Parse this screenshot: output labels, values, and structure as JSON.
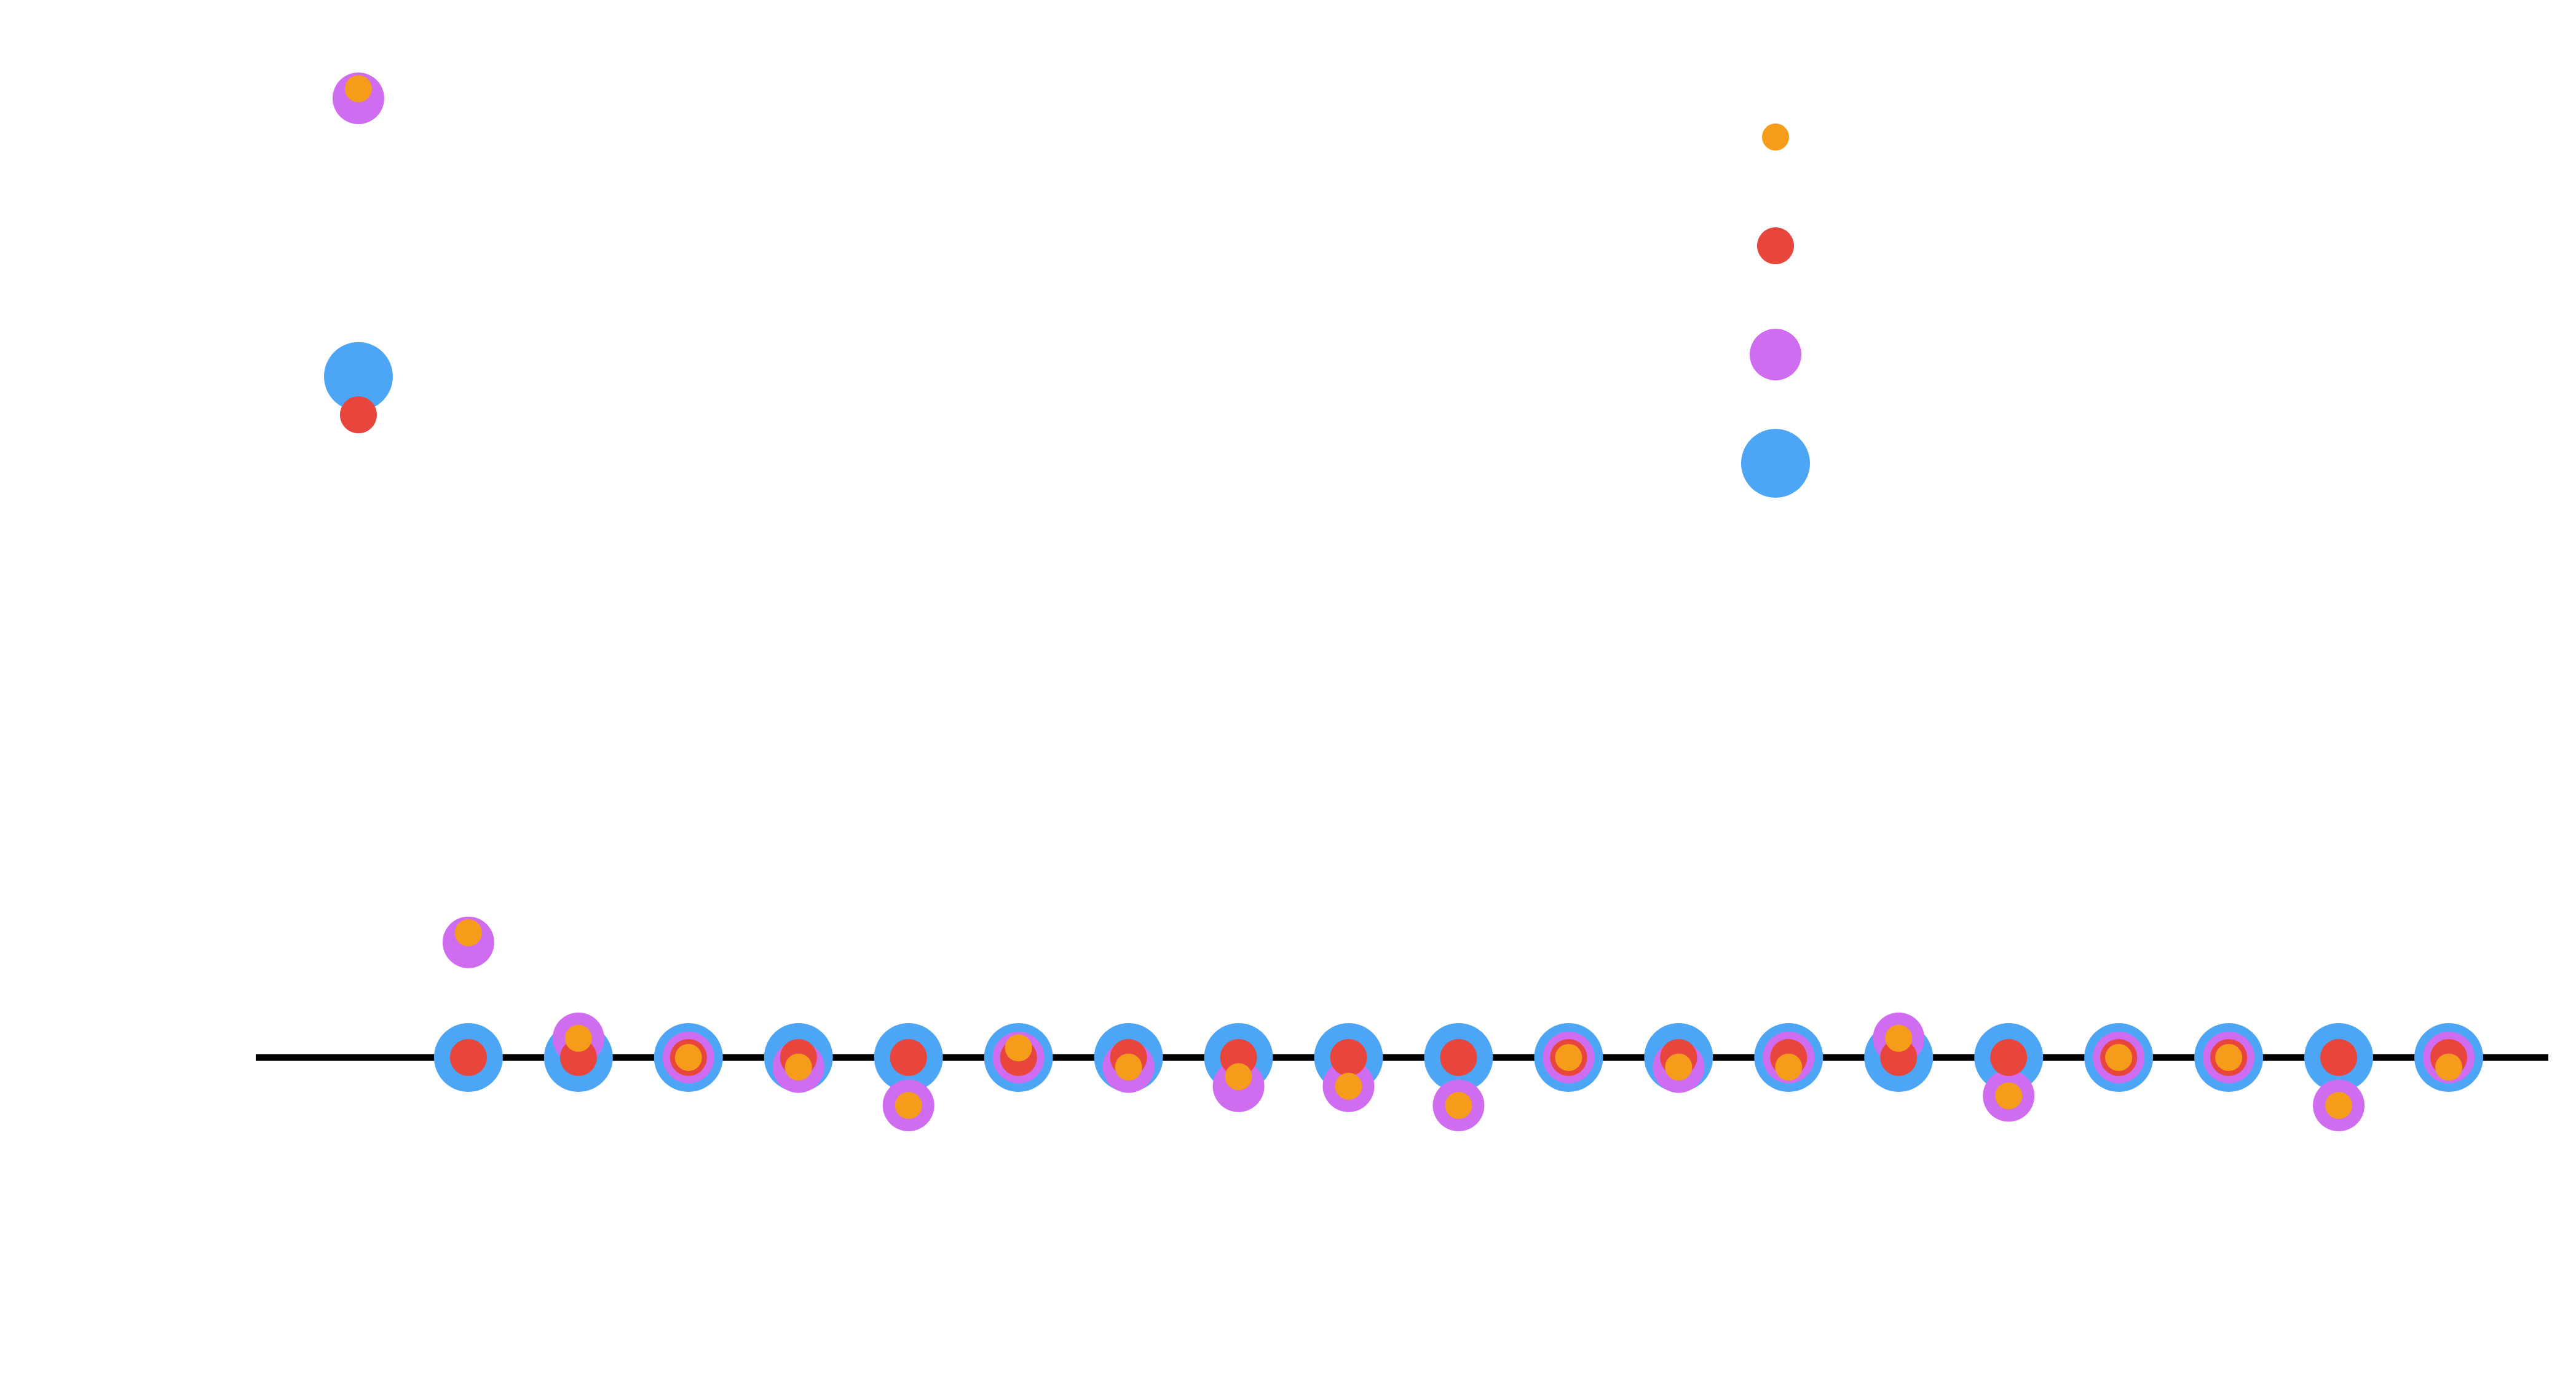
{
  "chart_data": {
    "type": "scatter",
    "title": "",
    "xlabel": "",
    "ylabel": "",
    "x_range": [
      0,
      21.7
    ],
    "y_range": [
      -0.27,
      1.0
    ],
    "grid": false,
    "baseline_y": 0,
    "x": [
      1,
      2,
      3,
      4,
      5,
      6,
      7,
      8,
      9,
      10,
      11,
      12,
      13,
      14,
      15,
      16,
      17,
      18,
      19,
      20
    ],
    "series": [
      {
        "color": "#4da6f5",
        "marker_size": "xlarge",
        "values": [
          0.71,
          0,
          0,
          0,
          0,
          0,
          0,
          0,
          0,
          0,
          0,
          0,
          0,
          0,
          0,
          0,
          0,
          0,
          0,
          0
        ]
      },
      {
        "color": "#cf6cf0",
        "marker_size": "large",
        "values": [
          1.0,
          0.12,
          0.02,
          0,
          -0.01,
          -0.05,
          0,
          -0.01,
          -0.03,
          -0.03,
          -0.05,
          0,
          -0.01,
          0,
          0.02,
          -0.04,
          0,
          0,
          -0.05,
          0
        ]
      },
      {
        "color": "#e8453c",
        "marker_size": "medium",
        "values": [
          0.67,
          0,
          0,
          0,
          0,
          0,
          0,
          0,
          0,
          0,
          0,
          0,
          0,
          0,
          0,
          0,
          0,
          0,
          0,
          0
        ]
      },
      {
        "color": "#f59c1a",
        "marker_size": "small",
        "values": [
          1.01,
          0.13,
          0.02,
          0,
          -0.01,
          -0.05,
          0.01,
          -0.01,
          -0.02,
          -0.03,
          -0.05,
          0,
          -0.01,
          -0.01,
          0.02,
          -0.04,
          0,
          0,
          -0.05,
          -0.01
        ]
      }
    ],
    "legend": {
      "placement": "upper-center",
      "entries": [
        {
          "color": "#f59c1a",
          "marker_size": "small"
        },
        {
          "color": "#e8453c",
          "marker_size": "medium"
        },
        {
          "color": "#cf6cf0",
          "marker_size": "large"
        },
        {
          "color": "#4da6f5",
          "marker_size": "xlarge"
        }
      ]
    }
  }
}
